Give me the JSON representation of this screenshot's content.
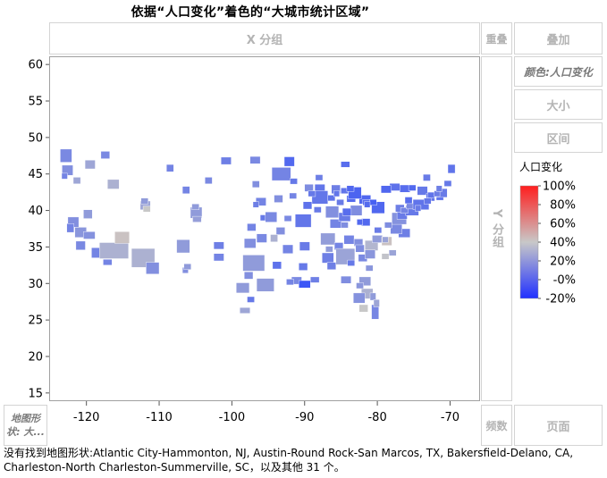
{
  "title": "依据“人口变化”着色的“大城市统计区域”",
  "zones": {
    "x_group": "X 分组",
    "overlay": "重叠",
    "stack": "叠加",
    "color": "颜色:人口变化",
    "size": "大小",
    "interval": "区间",
    "y_group": "Y 分组",
    "map_shape": "地图形状: 大...",
    "frequency": "频数",
    "page": "页面"
  },
  "legend": {
    "title": "人口变化",
    "labels": [
      "100%",
      "80%",
      "60%",
      "40%",
      "20%",
      "-0%",
      "-20%"
    ],
    "colors": {
      "high": "#ff2020",
      "mid": "#c8c8c8",
      "low": "#2040ff"
    }
  },
  "footer": {
    "line1": "没有找到地图形状:Atlantic City-Hammonton, NJ, Austin-Round Rock-San Marcos, TX, Bakersfield-Delano, CA,",
    "line2": "Charleston-North Charleston-Summerville, SC，以及其他 31 个。"
  },
  "chart_data": {
    "type": "map",
    "title": "依据“人口变化”着色的“大城市统计区域”",
    "xlim": [
      -125,
      -66
    ],
    "ylim": [
      14,
      61
    ],
    "x_ticks": [
      -120,
      -110,
      -100,
      -90,
      -80,
      -70
    ],
    "y_ticks": [
      15,
      20,
      25,
      30,
      35,
      40,
      45,
      50,
      55,
      60
    ],
    "color_scale": {
      "min": -0.2,
      "max": 1.0,
      "variable": "人口变化"
    },
    "regions": [
      {
        "lon": -122.8,
        "lat": 47.5,
        "w": 1.6,
        "h": 1.8,
        "v": 0.12
      },
      {
        "lon": -122.6,
        "lat": 45.5,
        "w": 1.5,
        "h": 1.4,
        "v": 0.15
      },
      {
        "lon": -121.3,
        "lat": 44.1,
        "w": 1.0,
        "h": 0.9,
        "v": 0.25
      },
      {
        "lon": -123.0,
        "lat": 44.7,
        "w": 0.8,
        "h": 0.8,
        "v": 0.1
      },
      {
        "lon": -117.4,
        "lat": 47.6,
        "w": 1.2,
        "h": 1.0,
        "v": 0.12
      },
      {
        "lon": -119.5,
        "lat": 46.3,
        "w": 1.4,
        "h": 1.2,
        "v": 0.25
      },
      {
        "lon": -116.3,
        "lat": 43.6,
        "w": 1.6,
        "h": 1.3,
        "v": 0.3
      },
      {
        "lon": -121.8,
        "lat": 38.4,
        "w": 1.5,
        "h": 1.4,
        "v": 0.15
      },
      {
        "lon": -122.2,
        "lat": 37.6,
        "w": 1.0,
        "h": 1.2,
        "v": 0.1
      },
      {
        "lon": -120.8,
        "lat": 37.0,
        "w": 1.6,
        "h": 1.4,
        "v": 0.18
      },
      {
        "lon": -119.6,
        "lat": 36.6,
        "w": 1.6,
        "h": 1.0,
        "v": 0.16
      },
      {
        "lon": -120.8,
        "lat": 35.2,
        "w": 1.3,
        "h": 1.2,
        "v": 0.12
      },
      {
        "lon": -118.2,
        "lat": 34.2,
        "w": 2.2,
        "h": 1.4,
        "v": 0.1
      },
      {
        "lon": -116.2,
        "lat": 34.5,
        "w": 4.0,
        "h": 2.2,
        "v": 0.3
      },
      {
        "lon": -117.1,
        "lat": 32.9,
        "w": 1.2,
        "h": 0.8,
        "v": 0.1
      },
      {
        "lon": -115.1,
        "lat": 36.3,
        "w": 2.0,
        "h": 1.6,
        "v": 0.42
      },
      {
        "lon": -119.8,
        "lat": 39.5,
        "w": 1.2,
        "h": 1.2,
        "v": 0.2
      },
      {
        "lon": -111.9,
        "lat": 40.7,
        "w": 1.4,
        "h": 1.2,
        "v": 0.25
      },
      {
        "lon": -112.0,
        "lat": 41.3,
        "w": 1.0,
        "h": 0.8,
        "v": 0.2
      },
      {
        "lon": -111.7,
        "lat": 40.2,
        "w": 1.0,
        "h": 0.8,
        "v": 0.4
      },
      {
        "lon": -112.2,
        "lat": 33.5,
        "w": 3.2,
        "h": 2.6,
        "v": 0.3
      },
      {
        "lon": -110.9,
        "lat": 32.1,
        "w": 1.8,
        "h": 1.6,
        "v": 0.15
      },
      {
        "lon": -106.7,
        "lat": 35.1,
        "w": 1.8,
        "h": 1.8,
        "v": 0.2
      },
      {
        "lon": -106.4,
        "lat": 31.8,
        "w": 0.8,
        "h": 0.8,
        "v": 0.15
      },
      {
        "lon": -104.9,
        "lat": 39.7,
        "w": 1.6,
        "h": 1.5,
        "v": 0.2
      },
      {
        "lon": -104.8,
        "lat": 38.8,
        "w": 1.2,
        "h": 0.8,
        "v": 0.22
      },
      {
        "lon": -105.0,
        "lat": 40.5,
        "w": 1.0,
        "h": 0.8,
        "v": 0.2
      },
      {
        "lon": -106.3,
        "lat": 42.8,
        "w": 1.0,
        "h": 1.0,
        "v": 0.1
      },
      {
        "lon": -108.5,
        "lat": 45.8,
        "w": 1.0,
        "h": 1.0,
        "v": 0.1
      },
      {
        "lon": -100.8,
        "lat": 46.8,
        "w": 1.4,
        "h": 1.0,
        "v": 0.08
      },
      {
        "lon": -96.8,
        "lat": 46.9,
        "w": 1.4,
        "h": 1.0,
        "v": 0.12
      },
      {
        "lon": -96.7,
        "lat": 43.6,
        "w": 1.0,
        "h": 0.9,
        "v": 0.15
      },
      {
        "lon": -103.2,
        "lat": 44.1,
        "w": 1.0,
        "h": 0.9,
        "v": 0.12
      },
      {
        "lon": -96.0,
        "lat": 41.2,
        "w": 1.4,
        "h": 1.1,
        "v": 0.1
      },
      {
        "lon": -96.7,
        "lat": 40.8,
        "w": 0.8,
        "h": 0.8,
        "v": 0.08
      },
      {
        "lon": -97.3,
        "lat": 37.7,
        "w": 1.2,
        "h": 1.0,
        "v": 0.1
      },
      {
        "lon": -95.7,
        "lat": 39.0,
        "w": 0.8,
        "h": 0.8,
        "v": 0.05
      },
      {
        "lon": -94.6,
        "lat": 39.1,
        "w": 1.6,
        "h": 1.4,
        "v": 0.12
      },
      {
        "lon": -97.5,
        "lat": 35.5,
        "w": 1.6,
        "h": 1.3,
        "v": 0.15
      },
      {
        "lon": -95.9,
        "lat": 36.2,
        "w": 1.4,
        "h": 1.2,
        "v": 0.12
      },
      {
        "lon": -101.8,
        "lat": 35.2,
        "w": 1.4,
        "h": 1.0,
        "v": 0.08
      },
      {
        "lon": -101.8,
        "lat": 33.6,
        "w": 1.4,
        "h": 1.0,
        "v": 0.1
      },
      {
        "lon": -97.0,
        "lat": 32.8,
        "w": 3.0,
        "h": 2.2,
        "v": 0.2
      },
      {
        "lon": -97.7,
        "lat": 31.1,
        "w": 1.2,
        "h": 1.0,
        "v": 0.15
      },
      {
        "lon": -98.5,
        "lat": 29.4,
        "w": 1.8,
        "h": 1.4,
        "v": 0.2
      },
      {
        "lon": -95.4,
        "lat": 29.8,
        "w": 2.4,
        "h": 1.8,
        "v": 0.2
      },
      {
        "lon": -97.4,
        "lat": 27.8,
        "w": 1.0,
        "h": 0.8,
        "v": 0.05
      },
      {
        "lon": -98.2,
        "lat": 26.3,
        "w": 1.4,
        "h": 0.8,
        "v": 0.25
      },
      {
        "lon": -106.1,
        "lat": 32.3,
        "w": 1.0,
        "h": 0.8,
        "v": 0.2
      },
      {
        "lon": -93.2,
        "lat": 45.0,
        "w": 2.6,
        "h": 1.8,
        "v": 0.1
      },
      {
        "lon": -92.1,
        "lat": 46.7,
        "w": 1.4,
        "h": 1.3,
        "v": -0.02
      },
      {
        "lon": -91.5,
        "lat": 44.0,
        "w": 1.0,
        "h": 0.8,
        "v": 0.05
      },
      {
        "lon": -93.6,
        "lat": 41.6,
        "w": 1.2,
        "h": 1.0,
        "v": 0.15
      },
      {
        "lon": -91.6,
        "lat": 42.0,
        "w": 1.0,
        "h": 0.8,
        "v": 0.1
      },
      {
        "lon": -90.2,
        "lat": 38.6,
        "w": 2.2,
        "h": 1.8,
        "v": 0.04
      },
      {
        "lon": -92.3,
        "lat": 38.9,
        "w": 1.0,
        "h": 0.8,
        "v": 0.12
      },
      {
        "lon": -93.3,
        "lat": 37.2,
        "w": 1.2,
        "h": 1.0,
        "v": 0.15
      },
      {
        "lon": -92.3,
        "lat": 34.7,
        "w": 1.4,
        "h": 1.2,
        "v": 0.1
      },
      {
        "lon": -94.2,
        "lat": 36.2,
        "w": 1.0,
        "h": 1.0,
        "v": 0.3
      },
      {
        "lon": -93.8,
        "lat": 32.5,
        "w": 1.2,
        "h": 1.0,
        "v": 0.02
      },
      {
        "lon": -91.1,
        "lat": 30.4,
        "w": 1.4,
        "h": 1.0,
        "v": 0.12
      },
      {
        "lon": -90.0,
        "lat": 29.9,
        "w": 1.6,
        "h": 1.0,
        "v": -0.1
      },
      {
        "lon": -92.0,
        "lat": 30.2,
        "w": 1.0,
        "h": 0.8,
        "v": 0.1
      },
      {
        "lon": -90.2,
        "lat": 32.3,
        "w": 1.2,
        "h": 1.0,
        "v": 0.05
      },
      {
        "lon": -88.6,
        "lat": 30.5,
        "w": 1.2,
        "h": 0.8,
        "v": 0.08
      },
      {
        "lon": -87.9,
        "lat": 43.0,
        "w": 1.4,
        "h": 1.2,
        "v": 0.04
      },
      {
        "lon": -89.4,
        "lat": 43.1,
        "w": 1.2,
        "h": 1.0,
        "v": 0.14
      },
      {
        "lon": -88.0,
        "lat": 44.5,
        "w": 1.0,
        "h": 0.8,
        "v": 0.08
      },
      {
        "lon": -87.9,
        "lat": 41.8,
        "w": 2.2,
        "h": 1.8,
        "v": 0.04
      },
      {
        "lon": -89.6,
        "lat": 40.7,
        "w": 1.2,
        "h": 1.0,
        "v": 0.02
      },
      {
        "lon": -89.0,
        "lat": 42.3,
        "w": 1.0,
        "h": 0.8,
        "v": 0.05
      },
      {
        "lon": -88.2,
        "lat": 40.1,
        "w": 1.0,
        "h": 0.8,
        "v": 0.06
      },
      {
        "lon": -86.2,
        "lat": 39.8,
        "w": 1.8,
        "h": 1.6,
        "v": 0.15
      },
      {
        "lon": -85.1,
        "lat": 41.1,
        "w": 1.0,
        "h": 0.8,
        "v": 0.06
      },
      {
        "lon": -86.3,
        "lat": 41.7,
        "w": 1.0,
        "h": 0.8,
        "v": 0.03
      },
      {
        "lon": -85.7,
        "lat": 38.2,
        "w": 1.6,
        "h": 1.2,
        "v": 0.1
      },
      {
        "lon": -84.5,
        "lat": 39.1,
        "w": 1.6,
        "h": 1.2,
        "v": 0.06
      },
      {
        "lon": -84.5,
        "lat": 38.0,
        "w": 1.0,
        "h": 0.8,
        "v": 0.14
      },
      {
        "lon": -86.8,
        "lat": 36.1,
        "w": 2.0,
        "h": 1.6,
        "v": 0.21
      },
      {
        "lon": -85.3,
        "lat": 35.1,
        "w": 1.2,
        "h": 1.0,
        "v": 0.1
      },
      {
        "lon": -83.9,
        "lat": 36.0,
        "w": 1.4,
        "h": 1.2,
        "v": 0.1
      },
      {
        "lon": -90.0,
        "lat": 35.1,
        "w": 1.4,
        "h": 1.2,
        "v": 0.06
      },
      {
        "lon": -86.8,
        "lat": 33.5,
        "w": 1.6,
        "h": 1.4,
        "v": 0.08
      },
      {
        "lon": -86.6,
        "lat": 34.7,
        "w": 1.0,
        "h": 0.8,
        "v": 0.2
      },
      {
        "lon": -86.3,
        "lat": 32.4,
        "w": 1.2,
        "h": 1.0,
        "v": 0.08
      },
      {
        "lon": -84.4,
        "lat": 33.7,
        "w": 2.6,
        "h": 2.2,
        "v": 0.24
      },
      {
        "lon": -83.6,
        "lat": 32.8,
        "w": 1.0,
        "h": 0.8,
        "v": 0.05
      },
      {
        "lon": -82.0,
        "lat": 33.5,
        "w": 1.2,
        "h": 1.0,
        "v": 0.12
      },
      {
        "lon": -81.1,
        "lat": 32.1,
        "w": 1.0,
        "h": 0.8,
        "v": 0.18
      },
      {
        "lon": -84.3,
        "lat": 30.5,
        "w": 1.4,
        "h": 1.0,
        "v": 0.14
      },
      {
        "lon": -81.7,
        "lat": 30.3,
        "w": 1.6,
        "h": 1.2,
        "v": 0.2
      },
      {
        "lon": -81.4,
        "lat": 28.6,
        "w": 1.6,
        "h": 1.4,
        "v": 0.3
      },
      {
        "lon": -82.5,
        "lat": 28.0,
        "w": 1.6,
        "h": 1.4,
        "v": 0.16
      },
      {
        "lon": -80.6,
        "lat": 28.2,
        "w": 0.8,
        "h": 1.0,
        "v": 0.2
      },
      {
        "lon": -82.4,
        "lat": 29.7,
        "w": 1.0,
        "h": 0.8,
        "v": 0.18
      },
      {
        "lon": -81.9,
        "lat": 26.6,
        "w": 1.2,
        "h": 1.0,
        "v": 0.4
      },
      {
        "lon": -80.3,
        "lat": 26.1,
        "w": 1.0,
        "h": 2.0,
        "v": 0.11
      },
      {
        "lon": -80.1,
        "lat": 27.3,
        "w": 0.8,
        "h": 1.0,
        "v": 0.25
      },
      {
        "lon": -80.8,
        "lat": 35.2,
        "w": 1.8,
        "h": 1.4,
        "v": 0.32
      },
      {
        "lon": -80.0,
        "lat": 36.1,
        "w": 1.4,
        "h": 1.0,
        "v": 0.2
      },
      {
        "lon": -78.7,
        "lat": 35.8,
        "w": 1.4,
        "h": 1.2,
        "v": 0.42
      },
      {
        "lon": -78.9,
        "lat": 36.0,
        "w": 0.8,
        "h": 0.8,
        "v": 0.24
      },
      {
        "lon": -77.9,
        "lat": 34.2,
        "w": 1.0,
        "h": 0.8,
        "v": 0.24
      },
      {
        "lon": -82.6,
        "lat": 35.6,
        "w": 1.2,
        "h": 1.0,
        "v": 0.15
      },
      {
        "lon": -81.0,
        "lat": 34.0,
        "w": 1.4,
        "h": 1.2,
        "v": 0.18
      },
      {
        "lon": -82.4,
        "lat": 34.8,
        "w": 1.2,
        "h": 1.0,
        "v": 0.14
      },
      {
        "lon": -78.9,
        "lat": 33.7,
        "w": 1.0,
        "h": 0.8,
        "v": 0.38
      },
      {
        "lon": -76.3,
        "lat": 36.9,
        "w": 1.6,
        "h": 1.2,
        "v": 0.08
      },
      {
        "lon": -77.4,
        "lat": 37.5,
        "w": 1.6,
        "h": 1.4,
        "v": 0.12
      },
      {
        "lon": -79.9,
        "lat": 37.3,
        "w": 1.0,
        "h": 0.8,
        "v": 0.06
      },
      {
        "lon": -78.5,
        "lat": 38.0,
        "w": 1.0,
        "h": 0.8,
        "v": 0.14
      },
      {
        "lon": -77.0,
        "lat": 38.9,
        "w": 2.0,
        "h": 1.6,
        "v": 0.16
      },
      {
        "lon": -76.6,
        "lat": 39.3,
        "w": 1.4,
        "h": 1.0,
        "v": 0.06
      },
      {
        "lon": -75.2,
        "lat": 40.0,
        "w": 1.8,
        "h": 1.4,
        "v": 0.05
      },
      {
        "lon": -79.9,
        "lat": 40.4,
        "w": 1.8,
        "h": 1.6,
        "v": -0.03
      },
      {
        "lon": -76.9,
        "lat": 40.3,
        "w": 1.2,
        "h": 1.0,
        "v": 0.08
      },
      {
        "lon": -76.3,
        "lat": 40.0,
        "w": 1.0,
        "h": 0.8,
        "v": 0.1
      },
      {
        "lon": -75.5,
        "lat": 40.6,
        "w": 1.0,
        "h": 0.8,
        "v": 0.12
      },
      {
        "lon": -75.7,
        "lat": 41.4,
        "w": 1.0,
        "h": 0.9,
        "v": 0.0
      },
      {
        "lon": -74.0,
        "lat": 40.8,
        "w": 2.2,
        "h": 1.4,
        "v": 0.03
      },
      {
        "lon": -74.4,
        "lat": 40.3,
        "w": 0.8,
        "h": 0.8,
        "v": 0.06
      },
      {
        "lon": -73.8,
        "lat": 42.7,
        "w": 1.4,
        "h": 1.2,
        "v": 0.05
      },
      {
        "lon": -76.2,
        "lat": 43.0,
        "w": 1.4,
        "h": 1.0,
        "v": 0.0
      },
      {
        "lon": -77.6,
        "lat": 43.2,
        "w": 1.4,
        "h": 1.0,
        "v": 0.02
      },
      {
        "lon": -78.8,
        "lat": 42.9,
        "w": 1.4,
        "h": 1.0,
        "v": -0.03
      },
      {
        "lon": -75.2,
        "lat": 43.1,
        "w": 1.0,
        "h": 0.8,
        "v": -0.02
      },
      {
        "lon": -72.7,
        "lat": 41.8,
        "w": 1.2,
        "h": 1.0,
        "v": 0.04
      },
      {
        "lon": -73.1,
        "lat": 41.3,
        "w": 1.0,
        "h": 0.8,
        "v": 0.04
      },
      {
        "lon": -72.6,
        "lat": 42.1,
        "w": 1.0,
        "h": 0.8,
        "v": 0.03
      },
      {
        "lon": -71.4,
        "lat": 41.8,
        "w": 1.0,
        "h": 0.8,
        "v": 0.01
      },
      {
        "lon": -71.1,
        "lat": 42.4,
        "w": 1.4,
        "h": 1.2,
        "v": 0.06
      },
      {
        "lon": -71.8,
        "lat": 42.3,
        "w": 0.8,
        "h": 0.8,
        "v": 0.07
      },
      {
        "lon": -71.5,
        "lat": 43.0,
        "w": 0.8,
        "h": 0.8,
        "v": 0.08
      },
      {
        "lon": -70.3,
        "lat": 43.7,
        "w": 1.0,
        "h": 0.8,
        "v": 0.05
      },
      {
        "lon": -73.2,
        "lat": 44.5,
        "w": 1.0,
        "h": 0.9,
        "v": 0.06
      },
      {
        "lon": -69.8,
        "lat": 45.7,
        "w": 1.0,
        "h": 1.2,
        "v": 0.03
      },
      {
        "lon": -82.9,
        "lat": 40.0,
        "w": 1.6,
        "h": 1.4,
        "v": 0.14
      },
      {
        "lon": -81.7,
        "lat": 41.5,
        "w": 1.6,
        "h": 1.2,
        "v": -0.03
      },
      {
        "lon": -83.6,
        "lat": 41.6,
        "w": 1.2,
        "h": 0.9,
        "v": -0.01
      },
      {
        "lon": -81.5,
        "lat": 41.1,
        "w": 1.0,
        "h": 0.8,
        "v": 0.0
      },
      {
        "lon": -80.6,
        "lat": 41.1,
        "w": 1.0,
        "h": 0.8,
        "v": -0.06
      },
      {
        "lon": -84.2,
        "lat": 39.8,
        "w": 1.2,
        "h": 1.0,
        "v": 0.0
      },
      {
        "lon": -81.4,
        "lat": 40.8,
        "w": 0.8,
        "h": 0.8,
        "v": -0.01
      },
      {
        "lon": -83.1,
        "lat": 42.4,
        "w": 1.8,
        "h": 1.6,
        "v": -0.04
      },
      {
        "lon": -85.7,
        "lat": 42.9,
        "w": 1.2,
        "h": 1.2,
        "v": 0.08
      },
      {
        "lon": -84.5,
        "lat": 42.7,
        "w": 1.0,
        "h": 0.8,
        "v": 0.03
      },
      {
        "lon": -83.7,
        "lat": 43.0,
        "w": 1.0,
        "h": 0.8,
        "v": -0.03
      },
      {
        "lon": -85.6,
        "lat": 42.3,
        "w": 0.8,
        "h": 0.8,
        "v": 0.04
      },
      {
        "lon": -84.4,
        "lat": 46.3,
        "w": 1.2,
        "h": 0.8,
        "v": 0.0
      },
      {
        "lon": -81.6,
        "lat": 38.4,
        "w": 1.2,
        "h": 1.0,
        "v": -0.02
      },
      {
        "lon": -82.4,
        "lat": 38.4,
        "w": 0.8,
        "h": 0.8,
        "v": -0.02
      }
    ]
  }
}
